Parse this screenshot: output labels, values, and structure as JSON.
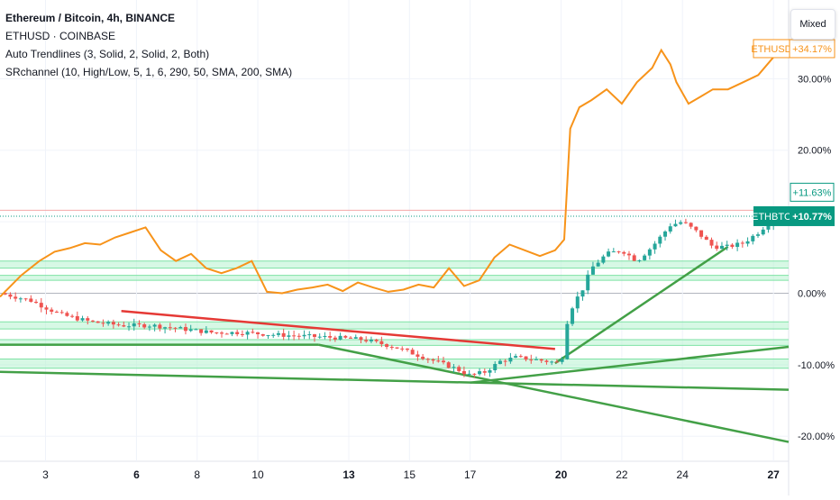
{
  "legend": {
    "title": "Ethereum / Bitcoin, 4h, BINANCE",
    "compare": "ETHUSD · COINBASE",
    "indicator1": "Auto Trendlines (3, Solid, 2, Solid, 2, Both)",
    "indicator2": "SRchannel (10, High/Low, 5, 1, 6, 290, 50, SMA, 200, SMA)"
  },
  "scale_mode_button": "Mixed",
  "colors": {
    "up": "#26a69a",
    "down": "#ef5350",
    "ethusd_line": "#f7931a",
    "ethbtc_badge": "#089981",
    "sr_fill": "#b7f3cf",
    "sr_line": "#7ee2a5",
    "trend_green": "#43a047",
    "trend_red": "#e53935",
    "resistance": "#f4a7a7"
  },
  "chart_data": {
    "type": "line",
    "x_axis": {
      "tick_labels": [
        "3",
        "6",
        "8",
        "10",
        "13",
        "15",
        "17",
        "20",
        "22",
        "24",
        "27"
      ],
      "bold_ticks": [
        "6",
        "13",
        "20",
        "27"
      ],
      "unit": "day of month",
      "range": [
        1.5,
        27.5
      ]
    },
    "y_axis": {
      "tick_labels": [
        "30.00%",
        "20.00%",
        "0.00%",
        "-10.00%",
        "-20.00%"
      ],
      "unit": "percent change",
      "range": [
        -23.5,
        41
      ]
    },
    "series": [
      {
        "name": "ETHUSD",
        "label": "ETHUSD",
        "value_label": "+34.17%",
        "x": [
          1.5,
          2.2,
          2.8,
          3.3,
          3.8,
          4.3,
          4.8,
          5.3,
          5.8,
          6.3,
          6.8,
          7.3,
          7.8,
          8.3,
          8.8,
          9.3,
          9.8,
          10.3,
          10.8,
          11.3,
          11.8,
          12.3,
          12.8,
          13.3,
          13.8,
          14.3,
          14.8,
          15.3,
          15.8,
          16.3,
          16.8,
          17.3,
          17.8,
          18.3,
          18.8,
          19.3,
          19.8,
          20.1,
          20.3,
          20.6,
          21.0,
          21.5,
          22.0,
          22.5,
          23.0,
          23.3,
          23.6,
          23.8,
          24.2,
          24.6,
          25.0,
          25.5,
          26.0,
          26.5,
          27.0,
          27.3
        ],
        "y": [
          -0.5,
          2.5,
          4.5,
          5.8,
          6.3,
          7.0,
          6.8,
          7.8,
          8.5,
          9.2,
          6.0,
          4.5,
          5.5,
          3.5,
          2.8,
          3.5,
          4.5,
          0.2,
          0.0,
          0.5,
          0.8,
          1.2,
          0.3,
          1.5,
          0.8,
          0.2,
          0.5,
          1.2,
          0.8,
          3.5,
          1.0,
          1.8,
          5.0,
          6.8,
          6.0,
          5.2,
          6.0,
          7.5,
          23.0,
          26.0,
          27.0,
          28.5,
          26.5,
          29.5,
          31.5,
          34.0,
          32.0,
          29.5,
          26.5,
          27.5,
          28.5,
          28.5,
          29.5,
          30.5,
          33.0,
          34.2
        ]
      },
      {
        "name": "ETHBTC",
        "label": "ETHBTC",
        "value_label": "+10.77%",
        "x": [
          1.5,
          2.5,
          3.5,
          4.5,
          5.5,
          6.5,
          7.5,
          8.5,
          9.5,
          10.5,
          11.5,
          12.5,
          13.5,
          14.5,
          15.5,
          16.5,
          17.0,
          17.5,
          18.0,
          18.5,
          19.0,
          19.5,
          20.0,
          20.2,
          20.4,
          20.7,
          21.0,
          21.5,
          22.0,
          22.5,
          23.0,
          23.3,
          23.6,
          24.0,
          24.5,
          25.0,
          25.5,
          26.0,
          26.5,
          27.0,
          27.3
        ],
        "y": [
          0.0,
          -1.0,
          -3.0,
          -4.0,
          -4.5,
          -4.5,
          -5.0,
          -5.5,
          -5.5,
          -5.8,
          -6.0,
          -6.2,
          -6.5,
          -7.5,
          -9.0,
          -10.5,
          -11.5,
          -11.0,
          -9.5,
          -9.0,
          -9.2,
          -9.5,
          -9.8,
          -4.0,
          -1.5,
          0.5,
          3.5,
          5.5,
          6.0,
          4.5,
          6.5,
          8.0,
          9.5,
          10.0,
          8.5,
          6.5,
          6.5,
          7.0,
          8.5,
          10.5,
          10.8
        ]
      }
    ],
    "horizontal_lines": [
      {
        "name": "resistance",
        "y": 11.6,
        "label": "+11.63%"
      },
      {
        "name": "last-price",
        "y": 10.77
      }
    ],
    "sr_channels": [
      [
        3.5,
        4.5
      ],
      [
        1.8,
        2.5
      ],
      [
        -4.0,
        -5.0
      ],
      [
        -6.5,
        -7.3
      ],
      [
        -9.2,
        -10.5
      ]
    ],
    "trendlines": [
      {
        "color": "green",
        "points": [
          [
            1.5,
            -7.2
          ],
          [
            12.0,
            -7.2
          ]
        ]
      },
      {
        "color": "green",
        "points": [
          [
            1.5,
            -11.0
          ],
          [
            27.5,
            -13.5
          ]
        ]
      },
      {
        "color": "green",
        "points": [
          [
            12.0,
            -7.2
          ],
          [
            27.5,
            -20.8
          ]
        ]
      },
      {
        "color": "green",
        "points": [
          [
            17.0,
            -12.5
          ],
          [
            27.5,
            -7.5
          ]
        ]
      },
      {
        "color": "green",
        "points": [
          [
            19.8,
            -9.8
          ],
          [
            25.5,
            6.5
          ]
        ]
      },
      {
        "color": "red",
        "points": [
          [
            5.5,
            -2.5
          ],
          [
            19.8,
            -7.8
          ]
        ]
      }
    ]
  }
}
